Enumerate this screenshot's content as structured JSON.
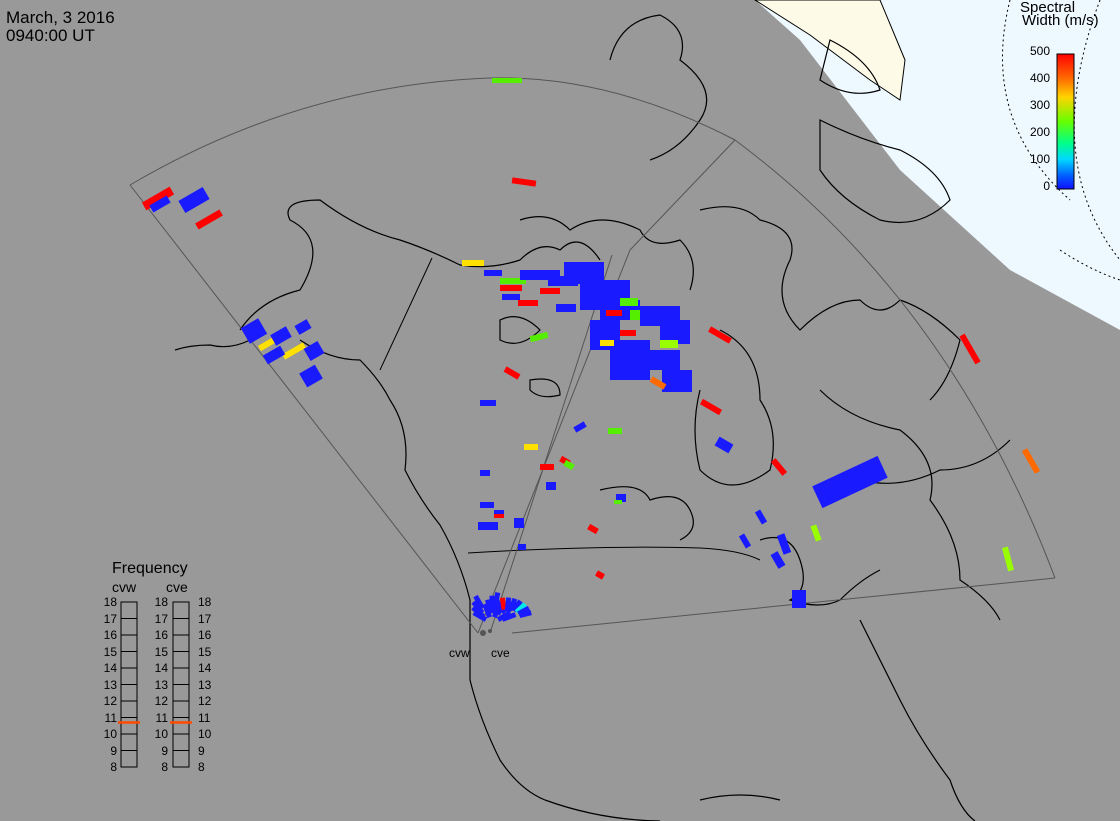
{
  "header": {
    "date": "March, 3 2016",
    "time": "0940:00 UT"
  },
  "colorbar": {
    "title_line1": "Spectral",
    "title_line2": "Width (m/s)",
    "ticks": [
      "500",
      "400",
      "300",
      "200",
      "100",
      "0"
    ],
    "colors": [
      "#ff0000",
      "#ff6a00",
      "#ffd400",
      "#88ff00",
      "#00ff66",
      "#00e0ff",
      "#0050ff",
      "#1010ff"
    ]
  },
  "frequency": {
    "title": "Frequency",
    "radar_a": "cvw",
    "radar_b": "cve",
    "scale": [
      "18",
      "17",
      "16",
      "15",
      "14",
      "13",
      "12",
      "11",
      "10",
      "9",
      "8"
    ],
    "cvw_mhz": 10.7,
    "cve_mhz": 10.7,
    "marker_color": "#ff4a00"
  },
  "sites": {
    "west": "cvw",
    "east": "cve"
  },
  "colors": {
    "land": "#999999",
    "daylight": "#fdfbe8",
    "sea_day": "#eef8ff",
    "fov_line": "#555555",
    "scatter_low": "#1a1aff"
  }
}
